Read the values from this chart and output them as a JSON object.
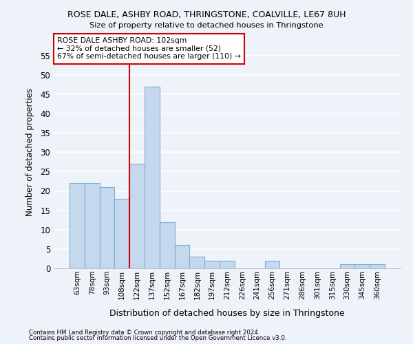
{
  "title1": "ROSE DALE, ASHBY ROAD, THRINGSTONE, COALVILLE, LE67 8UH",
  "title2": "Size of property relative to detached houses in Thringstone",
  "xlabel": "Distribution of detached houses by size in Thringstone",
  "ylabel": "Number of detached properties",
  "categories": [
    "63sqm",
    "78sqm",
    "93sqm",
    "108sqm",
    "122sqm",
    "137sqm",
    "152sqm",
    "167sqm",
    "182sqm",
    "197sqm",
    "212sqm",
    "226sqm",
    "241sqm",
    "256sqm",
    "271sqm",
    "286sqm",
    "301sqm",
    "315sqm",
    "330sqm",
    "345sqm",
    "360sqm"
  ],
  "values": [
    22,
    22,
    21,
    18,
    27,
    47,
    12,
    6,
    3,
    2,
    2,
    0,
    0,
    2,
    0,
    0,
    0,
    0,
    1,
    1,
    1
  ],
  "bar_color": "#c5d8ee",
  "bar_edge_color": "#7bafd4",
  "vline_x_index": 4,
  "vline_color": "#cc0000",
  "annotation_text": "ROSE DALE ASHBY ROAD: 102sqm\n← 32% of detached houses are smaller (52)\n67% of semi-detached houses are larger (110) →",
  "annotation_box_color": "#ffffff",
  "annotation_box_edge": "#cc0000",
  "ylim": [
    0,
    60
  ],
  "yticks": [
    0,
    5,
    10,
    15,
    20,
    25,
    30,
    35,
    40,
    45,
    50,
    55
  ],
  "footer1": "Contains HM Land Registry data © Crown copyright and database right 2024.",
  "footer2": "Contains public sector information licensed under the Open Government Licence v3.0.",
  "bg_color": "#eef2f9",
  "grid_color": "#ffffff"
}
